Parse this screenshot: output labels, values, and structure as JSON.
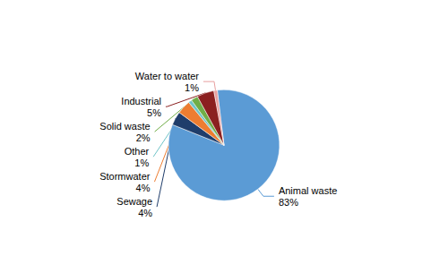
{
  "chart_data": {
    "type": "pie",
    "categories": [
      "Animal waste",
      "Sewage",
      "Stormwater",
      "Other",
      "Solid waste",
      "Industrial",
      "Water to water"
    ],
    "values": [
      83,
      4,
      4,
      1,
      2,
      5,
      1
    ],
    "value_labels": [
      "83%",
      "4%",
      "4%",
      "1%",
      "2%",
      "5%",
      "1%"
    ],
    "colors": [
      "#5B9BD5",
      "#1F3D6B",
      "#ED7D31",
      "#70C4C8",
      "#70AD47",
      "#8B2020",
      "#E8A0A0"
    ]
  }
}
